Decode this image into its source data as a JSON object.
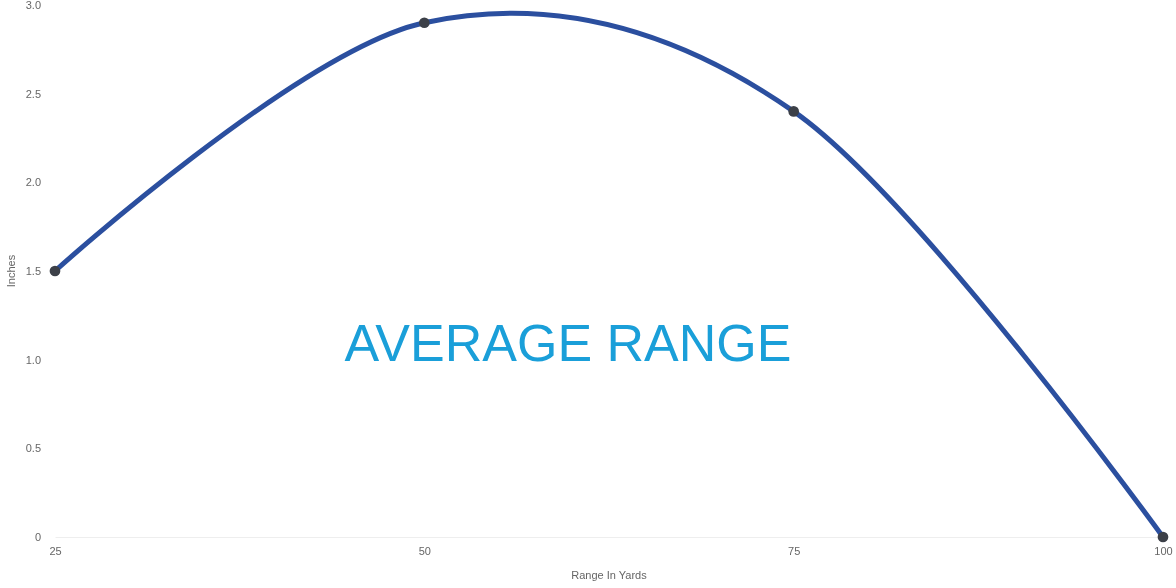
{
  "chart_data": {
    "type": "line",
    "xlabel": "Range In Yards",
    "ylabel": "Inches",
    "x": [
      25,
      50,
      75,
      100
    ],
    "series": [
      {
        "color": "#2b4f9f",
        "values": [
          1.5,
          2.9,
          2.4,
          0
        ]
      }
    ],
    "xlim": [
      25,
      100
    ],
    "xticks": [
      25,
      50,
      75,
      100
    ],
    "ylim": [
      0,
      3
    ],
    "yticks": [
      {
        "value": 0,
        "label": "0"
      },
      0.5,
      {
        "value": 1,
        "label": "1.0"
      },
      1.5,
      {
        "value": 2,
        "label": "2.0"
      },
      2.5,
      {
        "value": 3,
        "label": "3.0"
      }
    ],
    "grid": false,
    "marker": "circle",
    "line_style": "solid",
    "annotations": [
      "AVERAGE RANGE"
    ]
  }
}
